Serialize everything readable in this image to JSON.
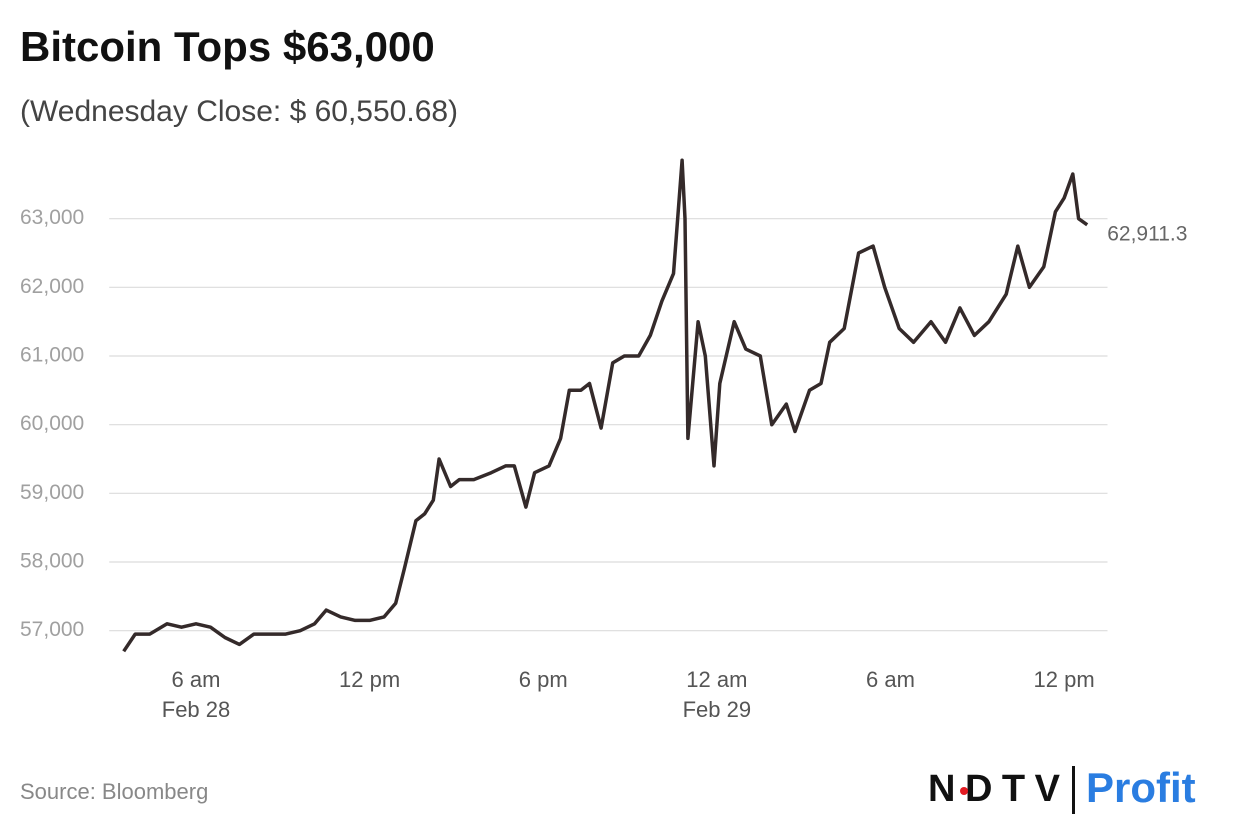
{
  "chart_data": {
    "type": "line",
    "title": "Bitcoin Tops $63,000",
    "subtitle": "(Wednesday Close: $ 60,550.68)",
    "source": "Source: Bloomberg",
    "logo": {
      "left": "NDTV",
      "right": "Profit"
    },
    "x": [
      "02-28T03:30",
      "02-28T03:54",
      "02-28T04:24",
      "02-28T05:00",
      "02-28T05:30",
      "02-28T06:00",
      "02-28T06:30",
      "02-28T07:00",
      "02-28T07:30",
      "02-28T08:00",
      "02-28T08:30",
      "02-28T09:06",
      "02-28T09:36",
      "02-28T10:06",
      "02-28T10:30",
      "02-28T11:00",
      "02-28T11:30",
      "02-28T12:00",
      "02-28T12:30",
      "02-28T12:54",
      "02-28T13:12",
      "02-28T13:36",
      "02-28T13:54",
      "02-28T14:12",
      "02-28T14:24",
      "02-28T14:48",
      "02-28T15:06",
      "02-28T15:36",
      "02-28T16:12",
      "02-28T16:42",
      "02-28T17:00",
      "02-28T17:24",
      "02-28T17:42",
      "02-28T18:12",
      "02-28T18:36",
      "02-28T18:54",
      "02-28T19:18",
      "02-28T19:36",
      "02-28T20:00",
      "02-28T20:24",
      "02-28T20:48",
      "02-28T21:18",
      "02-28T21:42",
      "02-28T22:06",
      "02-28T22:30",
      "02-28T22:48",
      "02-28T22:54",
      "02-28T23:00",
      "02-28T23:21",
      "02-28T23:36",
      "02-28T23:54",
      "02-29T00:06",
      "02-29T00:36",
      "02-29T01:00",
      "02-29T01:30",
      "02-29T01:54",
      "02-29T02:24",
      "02-29T02:42",
      "02-29T03:12",
      "02-29T03:36",
      "02-29T03:54",
      "02-29T04:24",
      "02-29T04:54",
      "02-29T05:24",
      "02-29T05:48",
      "02-29T06:18",
      "02-29T06:48",
      "02-29T07:24",
      "02-29T07:54",
      "02-29T08:24",
      "02-29T08:54",
      "02-29T09:24",
      "02-29T10:00",
      "02-29T10:24",
      "02-29T10:48",
      "02-29T11:18",
      "02-29T11:42",
      "02-29T12:00",
      "02-29T12:18",
      "02-29T12:30",
      "02-29T12:48"
    ],
    "series": [
      {
        "name": "Bitcoin",
        "color": "#342a2a",
        "values": [
          56700,
          56950,
          56950,
          57100,
          57050,
          57100,
          57050,
          56900,
          56800,
          56950,
          56950,
          56950,
          57000,
          57100,
          57300,
          57200,
          57150,
          57150,
          57200,
          57400,
          57900,
          58600,
          58700,
          58900,
          59500,
          59100,
          59200,
          59200,
          59300,
          59400,
          59400,
          58800,
          59300,
          59400,
          59800,
          60500,
          60500,
          60600,
          59950,
          60900,
          61000,
          61000,
          61300,
          61800,
          62200,
          63850,
          63000,
          59800,
          61500,
          61000,
          59400,
          60600,
          61500,
          61100,
          61000,
          60000,
          60300,
          59900,
          60500,
          60600,
          61200,
          61400,
          62500,
          62600,
          62000,
          61400,
          61200,
          61500,
          61200,
          61700,
          61300,
          61500,
          61900,
          62600,
          62000,
          62300,
          63100,
          63300,
          63650,
          63000,
          62911.3
        ],
        "value_labels": [
          null,
          null,
          null,
          null,
          null,
          null,
          null,
          null,
          null,
          null,
          null,
          null,
          null,
          null,
          null,
          null,
          null,
          null,
          null,
          null,
          null,
          null,
          null,
          null,
          null,
          null,
          null,
          null,
          null,
          null,
          null,
          null,
          null,
          null,
          null,
          null,
          null,
          null,
          null,
          null,
          null,
          null,
          null,
          null,
          null,
          null,
          null,
          null,
          null,
          null,
          null,
          null,
          null,
          null,
          null,
          null,
          null,
          null,
          null,
          null,
          null,
          null,
          null,
          null,
          null,
          null,
          null,
          null,
          null,
          null,
          null,
          null,
          null,
          null,
          null,
          null,
          null,
          null,
          null,
          null,
          "62,911.3"
        ]
      }
    ],
    "xlim": [
      "02-28T03:00",
      "02-29T13:30"
    ],
    "xticks": [
      {
        "value": "02-28T06:00",
        "label": "6 am",
        "date": "Feb 28"
      },
      {
        "value": "02-28T12:00",
        "label": "12 pm"
      },
      {
        "value": "02-28T18:00",
        "label": "6 pm"
      },
      {
        "value": "02-29T00:00",
        "label": "12 am",
        "date": "Feb 29"
      },
      {
        "value": "02-29T06:00",
        "label": "6 am"
      },
      {
        "value": "02-29T12:00",
        "label": "12 pm"
      }
    ],
    "ylim": [
      56500,
      64000
    ],
    "yticks": [
      {
        "value": 57000,
        "label": "57,000"
      },
      {
        "value": 58000,
        "label": "58,000"
      },
      {
        "value": 59000,
        "label": "59,000"
      },
      {
        "value": 60000,
        "label": "60,000"
      },
      {
        "value": 61000,
        "label": "61,000"
      },
      {
        "value": 62000,
        "label": "62,000"
      },
      {
        "value": 63000,
        "label": "63,000"
      }
    ],
    "grid": true
  }
}
